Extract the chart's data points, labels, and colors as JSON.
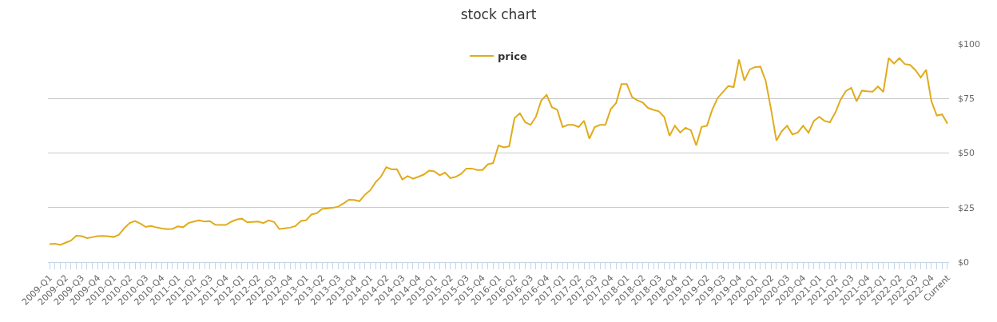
{
  "chart_data": {
    "type": "line",
    "title": "stock chart",
    "legend": "top",
    "grid": "y",
    "marker": "none",
    "line_style": "solid",
    "categories": [
      "2009-Q1",
      null,
      null,
      "2009-Q2",
      null,
      null,
      "2009-Q3",
      null,
      null,
      "2009-Q4",
      null,
      null,
      "2010-Q1",
      null,
      null,
      "2010-Q2",
      null,
      null,
      "2010-Q3",
      null,
      null,
      "2010-Q4",
      null,
      null,
      "2011-Q1",
      null,
      null,
      "2011-Q2",
      null,
      null,
      "2011-Q3",
      null,
      null,
      "2011-Q4",
      null,
      null,
      "2012-Q1",
      null,
      null,
      "2012-Q2",
      null,
      null,
      "2012-Q3",
      null,
      null,
      "2012-Q4",
      null,
      null,
      "2013-Q1",
      null,
      null,
      "2013-Q2",
      null,
      null,
      "2013-Q3",
      null,
      null,
      "2013-Q4",
      null,
      null,
      "2014-Q1",
      null,
      null,
      "2014-Q2",
      null,
      null,
      "2014-Q3",
      null,
      null,
      "2014-Q4",
      null,
      null,
      "2015-Q1",
      null,
      null,
      "2015-Q2",
      null,
      null,
      "2015-Q3",
      null,
      null,
      "2015-Q4",
      null,
      null,
      "2016-Q1",
      null,
      null,
      "2016-Q2",
      null,
      null,
      "2016-Q3",
      null,
      null,
      "2016-Q4",
      null,
      null,
      "2017-Q1",
      null,
      null,
      "2017-Q2",
      null,
      null,
      "2017-Q3",
      null,
      null,
      "2017-Q4",
      null,
      null,
      "2018-Q1",
      null,
      null,
      "2018-Q2",
      null,
      null,
      "2018-Q3",
      null,
      null,
      "2018-Q4",
      null,
      null,
      "2019-Q1",
      null,
      null,
      "2019-Q2",
      null,
      null,
      "2019-Q3",
      null,
      null,
      "2019-Q4",
      null,
      null,
      "2020-Q1",
      null,
      null,
      "2020-Q2",
      null,
      null,
      "2020-Q3",
      null,
      null,
      "2020-Q4",
      null,
      null,
      "2021-Q1",
      null,
      null,
      "2021-Q2",
      null,
      null,
      "2021-Q3",
      null,
      null,
      "2021-Q4",
      null,
      null,
      "2022-Q1",
      null,
      null,
      "2022-Q2",
      null,
      null,
      "2022-Q3",
      null,
      null,
      "2022-Q4",
      null,
      null,
      "Current"
    ],
    "series": [
      {
        "name": "price",
        "color": "#e0ab1c",
        "values": [
          8.2,
          8.4,
          7.9,
          8.9,
          9.8,
          12.1,
          11.9,
          11.0,
          11.4,
          11.9,
          12.0,
          11.8,
          11.5,
          12.6,
          15.6,
          17.9,
          18.8,
          17.6,
          16.1,
          16.6,
          15.9,
          15.4,
          15.1,
          15.2,
          16.4,
          16.0,
          17.9,
          18.6,
          19.1,
          18.6,
          18.8,
          17.1,
          17.0,
          17.0,
          18.5,
          19.5,
          19.9,
          18.2,
          18.4,
          18.6,
          17.9,
          19.1,
          18.4,
          15.1,
          15.5,
          15.8,
          16.5,
          18.8,
          19.2,
          21.8,
          22.4,
          24.4,
          24.6,
          24.9,
          25.4,
          26.9,
          28.6,
          28.5,
          27.9,
          30.9,
          32.9,
          36.6,
          39.1,
          43.5,
          42.5,
          42.6,
          37.9,
          39.4,
          38.2,
          39.1,
          40.1,
          41.9,
          41.6,
          39.8,
          41.0,
          38.5,
          39.1,
          40.4,
          42.9,
          42.9,
          42.2,
          42.2,
          44.8,
          45.4,
          53.5,
          52.6,
          53.1,
          66.0,
          68.2,
          64.1,
          62.9,
          66.6,
          74.1,
          76.6,
          71.0,
          69.8,
          61.9,
          62.9,
          62.9,
          61.9,
          64.8,
          56.6,
          61.9,
          62.9,
          62.9,
          70.1,
          72.9,
          81.6,
          81.6,
          75.6,
          74.1,
          73.1,
          70.6,
          69.8,
          69.1,
          66.6,
          57.9,
          62.5,
          59.4,
          61.6,
          60.4,
          53.5,
          62.0,
          62.5,
          69.9,
          75.2,
          78.0,
          80.7,
          80.2,
          92.9,
          83.2,
          88.3,
          89.4,
          89.6,
          83.0,
          69.9,
          55.7,
          60.0,
          62.5,
          58.5,
          59.4,
          62.5,
          59.3,
          64.7,
          66.6,
          64.7,
          64.1,
          68.4,
          74.5,
          78.4,
          79.9,
          73.7,
          78.6,
          78.3,
          78.1,
          80.5,
          78.0,
          93.5,
          91.0,
          93.5,
          90.8,
          90.4,
          88.0,
          84.6,
          88.2,
          73.7,
          67.2,
          67.7,
          63.5
        ]
      }
    ],
    "ylim": [
      0,
      100
    ],
    "yticks": [
      {
        "value": 0,
        "label": "$0"
      },
      {
        "value": 25,
        "label": "$25"
      },
      {
        "value": 50,
        "label": "$50"
      },
      {
        "value": 75,
        "label": "$75"
      },
      {
        "value": 100,
        "label": "$100"
      }
    ]
  }
}
